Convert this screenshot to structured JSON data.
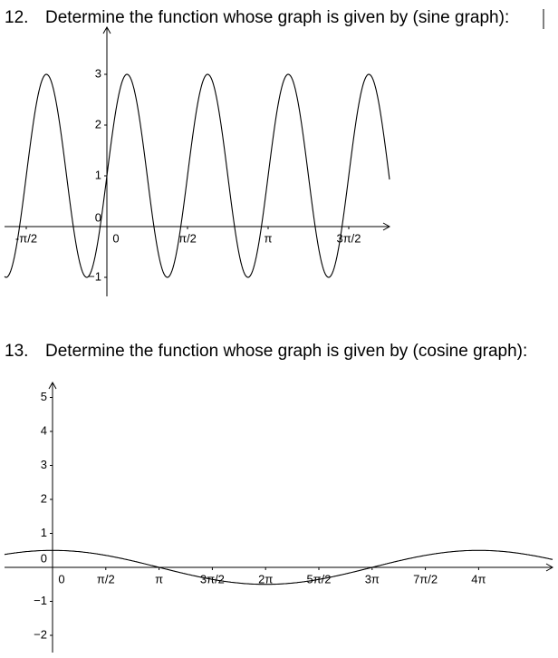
{
  "questions": [
    {
      "number": "12.",
      "text": "Determine the function whose graph is given by (sine graph):",
      "graph": {
        "y_labels": [
          "3",
          "2",
          "1",
          "0",
          "−1"
        ],
        "x_labels": [
          "-π/2",
          "0",
          "π/2",
          "π",
          "3π/2"
        ]
      }
    },
    {
      "number": "13.",
      "text": "Determine the function whose graph is given by (cosine graph):",
      "graph": {
        "y_labels": [
          "5",
          "4",
          "3",
          "2",
          "1",
          "0",
          "−1",
          "−2"
        ],
        "x_labels": [
          "0",
          "π/2",
          "π",
          "3π/2",
          "2π",
          "5π/2",
          "3π",
          "7π/2",
          "4π"
        ]
      }
    }
  ]
}
